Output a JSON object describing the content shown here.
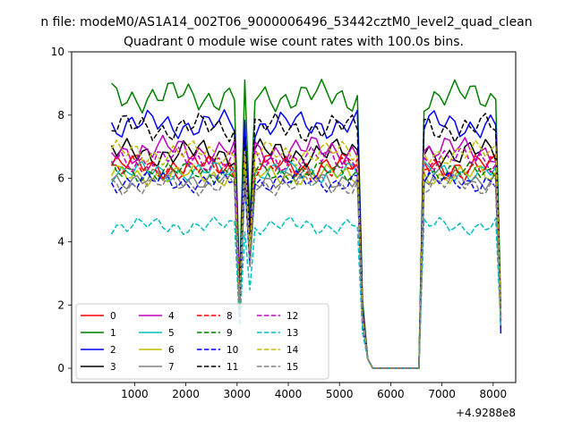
{
  "figure": {
    "suptitle": "n file: modeM0/AS1A14_002T06_9000006496_53442cztM0_level2_quad_clean",
    "title": "Quadrant 0 module wise count rates with 100.0s bins.",
    "offset_label": "+4.9288e8"
  },
  "chart_data": {
    "type": "line",
    "title": "Quadrant 0 module wise count rates with 100.0s bins.",
    "xlabel": "",
    "ylabel": "",
    "x_offset": 492880000,
    "xlim": [
      -230,
      8440
    ],
    "ylim": [
      -0.45,
      10.0
    ],
    "xticks": [
      1000,
      2000,
      3000,
      4000,
      5000,
      6000,
      7000,
      8000
    ],
    "yticks": [
      0,
      2,
      4,
      6,
      8,
      10
    ],
    "grid": false,
    "legend_position": "lower-left",
    "legend_columns": 4,
    "segments": [
      [
        550,
        5550
      ],
      [
        6650,
        8150
      ]
    ],
    "dips": [
      [
        3050,
        0.3
      ],
      [
        3250,
        0.55
      ]
    ],
    "descriptors": [
      {
        "name": "0",
        "color": "#ff0000",
        "dash": "solid",
        "level": 6.4,
        "amp": 0.35,
        "end": 1.6
      },
      {
        "name": "1",
        "color": "#008000",
        "dash": "solid",
        "level": 8.6,
        "amp": 0.45,
        "end": 1.9
      },
      {
        "name": "2",
        "color": "#0000ff",
        "dash": "solid",
        "level": 7.7,
        "amp": 0.4,
        "end": 1.1
      },
      {
        "name": "3",
        "color": "#000000",
        "dash": "solid",
        "level": 6.8,
        "amp": 0.4,
        "end": 1.3
      },
      {
        "name": "4",
        "color": "#bf00bf",
        "dash": "solid",
        "level": 6.9,
        "amp": 0.4,
        "end": 1.5
      },
      {
        "name": "5",
        "color": "#00bfbf",
        "dash": "solid",
        "level": 6.2,
        "amp": 0.3,
        "end": 1.4
      },
      {
        "name": "6",
        "color": "#bfbf00",
        "dash": "solid",
        "level": 6.1,
        "amp": 0.3,
        "end": 1.5
      },
      {
        "name": "7",
        "color": "#808080",
        "dash": "solid",
        "level": 6.0,
        "amp": 0.3,
        "end": 1.5
      },
      {
        "name": "8",
        "color": "#ff0000",
        "dash": "dashed",
        "level": 6.3,
        "amp": 0.35,
        "end": 1.6
      },
      {
        "name": "9",
        "color": "#008000",
        "dash": "dashed",
        "level": 6.2,
        "amp": 0.3,
        "end": 1.5
      },
      {
        "name": "10",
        "color": "#0000ff",
        "dash": "dashed",
        "level": 5.9,
        "amp": 0.3,
        "end": 1.4
      },
      {
        "name": "11",
        "color": "#000000",
        "dash": "dashed",
        "level": 7.6,
        "amp": 0.4,
        "end": 1.7
      },
      {
        "name": "12",
        "color": "#bf00bf",
        "dash": "dashed",
        "level": 6.6,
        "amp": 0.35,
        "end": 1.6
      },
      {
        "name": "13",
        "color": "#00bfbf",
        "dash": "dashed",
        "level": 4.5,
        "amp": 0.25,
        "end": 1.3
      },
      {
        "name": "14",
        "color": "#bfbf00",
        "dash": "dashed",
        "level": 6.8,
        "amp": 0.35,
        "end": 1.6
      },
      {
        "name": "15",
        "color": "#808080",
        "dash": "dashed",
        "level": 5.8,
        "amp": 0.3,
        "end": 1.5
      }
    ],
    "series": []
  }
}
